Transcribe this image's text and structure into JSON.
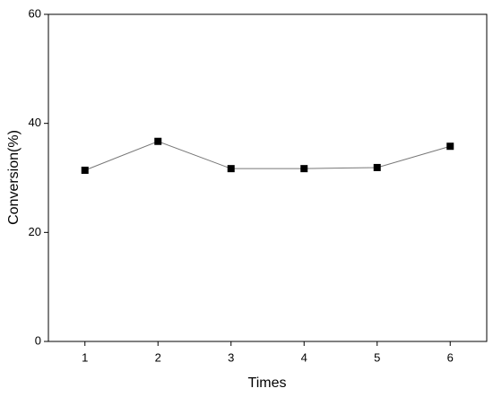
{
  "chart_data": {
    "type": "line",
    "x": [
      1,
      2,
      3,
      4,
      5,
      6
    ],
    "series": [
      {
        "color": "#000000",
        "values": [
          31.4,
          36.7,
          31.7,
          31.7,
          31.9,
          35.8
        ]
      }
    ],
    "xlim": [
      0.5,
      6.5
    ],
    "xticks": [
      1,
      2,
      3,
      4,
      5,
      6
    ],
    "ylim": [
      0,
      60
    ],
    "yticks": [
      0,
      20,
      40,
      60
    ],
    "xlabel": "Times",
    "ylabel": "Conversion(%)"
  }
}
